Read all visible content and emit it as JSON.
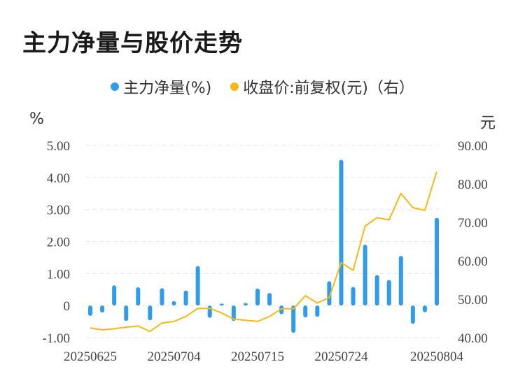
{
  "title": "主力净量与股价走势",
  "legend": {
    "bar_label": "主力净量(%)",
    "line_label": "收盘价:前复权(元)（右）"
  },
  "units": {
    "left": "%",
    "right": "元"
  },
  "colors": {
    "bar": "#2e9cea",
    "line": "#f5b914",
    "grid": "#e6e6e6"
  },
  "chart_data": {
    "type": "bar",
    "x_tick_labels": [
      "20250625",
      "20250704",
      "20250715",
      "20250724",
      "20250804"
    ],
    "left_axis": {
      "ylim": [
        -1,
        5
      ],
      "ticks": [
        "5.00",
        "4.00",
        "3.00",
        "2.00",
        "1.00",
        "0",
        "-1.00"
      ]
    },
    "right_axis": {
      "ylim": [
        40,
        90
      ],
      "ticks": [
        "90.00",
        "80.00",
        "70.00",
        "60.00",
        "50.00",
        "40.00"
      ]
    },
    "series": [
      {
        "name": "主力净量(%)",
        "type": "bar",
        "axis": "left",
        "values": [
          -0.32,
          -0.22,
          0.63,
          -0.48,
          0.57,
          -0.46,
          0.54,
          0.14,
          0.47,
          1.23,
          -0.38,
          0.06,
          -0.48,
          0.08,
          0.53,
          0.39,
          -0.27,
          -0.85,
          -0.37,
          -0.35,
          0.76,
          4.55,
          0.58,
          1.9,
          0.95,
          0.8,
          1.55,
          -0.57,
          -0.21,
          2.74
        ]
      },
      {
        "name": "收盘价:前复权(元)（右）",
        "type": "line",
        "axis": "right",
        "values": [
          42.5,
          42,
          42.3,
          42.7,
          43,
          41.6,
          43.8,
          44.2,
          45.5,
          47.6,
          47.6,
          46.4,
          44.8,
          44.5,
          44.2,
          45.5,
          47.5,
          47.5,
          50.9,
          49,
          50.4,
          59.5,
          57.5,
          69,
          71.2,
          70.6,
          77.5,
          73.8,
          73.1,
          83.2
        ]
      }
    ]
  }
}
